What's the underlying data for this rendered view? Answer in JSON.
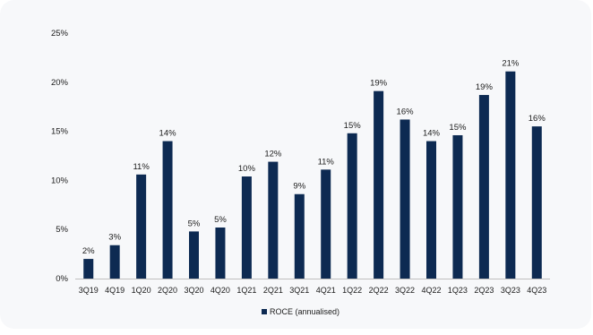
{
  "chart_data": {
    "type": "bar",
    "title": "",
    "xlabel": "",
    "ylabel": "",
    "ylim": [
      0,
      25
    ],
    "yticks": [
      "0%",
      "5%",
      "10%",
      "15%",
      "20%",
      "25%"
    ],
    "grid": false,
    "legend_position": "bottom-center",
    "categories": [
      "3Q19",
      "4Q19",
      "1Q20",
      "2Q20",
      "3Q20",
      "4Q20",
      "1Q21",
      "2Q21",
      "3Q21",
      "4Q21",
      "1Q22",
      "2Q22",
      "3Q22",
      "4Q22",
      "1Q23",
      "2Q23",
      "3Q23",
      "4Q23"
    ],
    "series": [
      {
        "name": "ROCE (annualised)",
        "color": "#0d2a52",
        "values": [
          2,
          3.4,
          10.6,
          14,
          4.8,
          5.2,
          10.4,
          11.9,
          8.6,
          11.1,
          14.8,
          19.1,
          16.2,
          14,
          14.6,
          18.7,
          21.1,
          15.5
        ],
        "labels": [
          "2%",
          "3%",
          "11%",
          "14%",
          "5%",
          "5%",
          "10%",
          "12%",
          "9%",
          "11%",
          "15%",
          "19%",
          "16%",
          "14%",
          "15%",
          "19%",
          "21%",
          "16%"
        ]
      }
    ]
  }
}
